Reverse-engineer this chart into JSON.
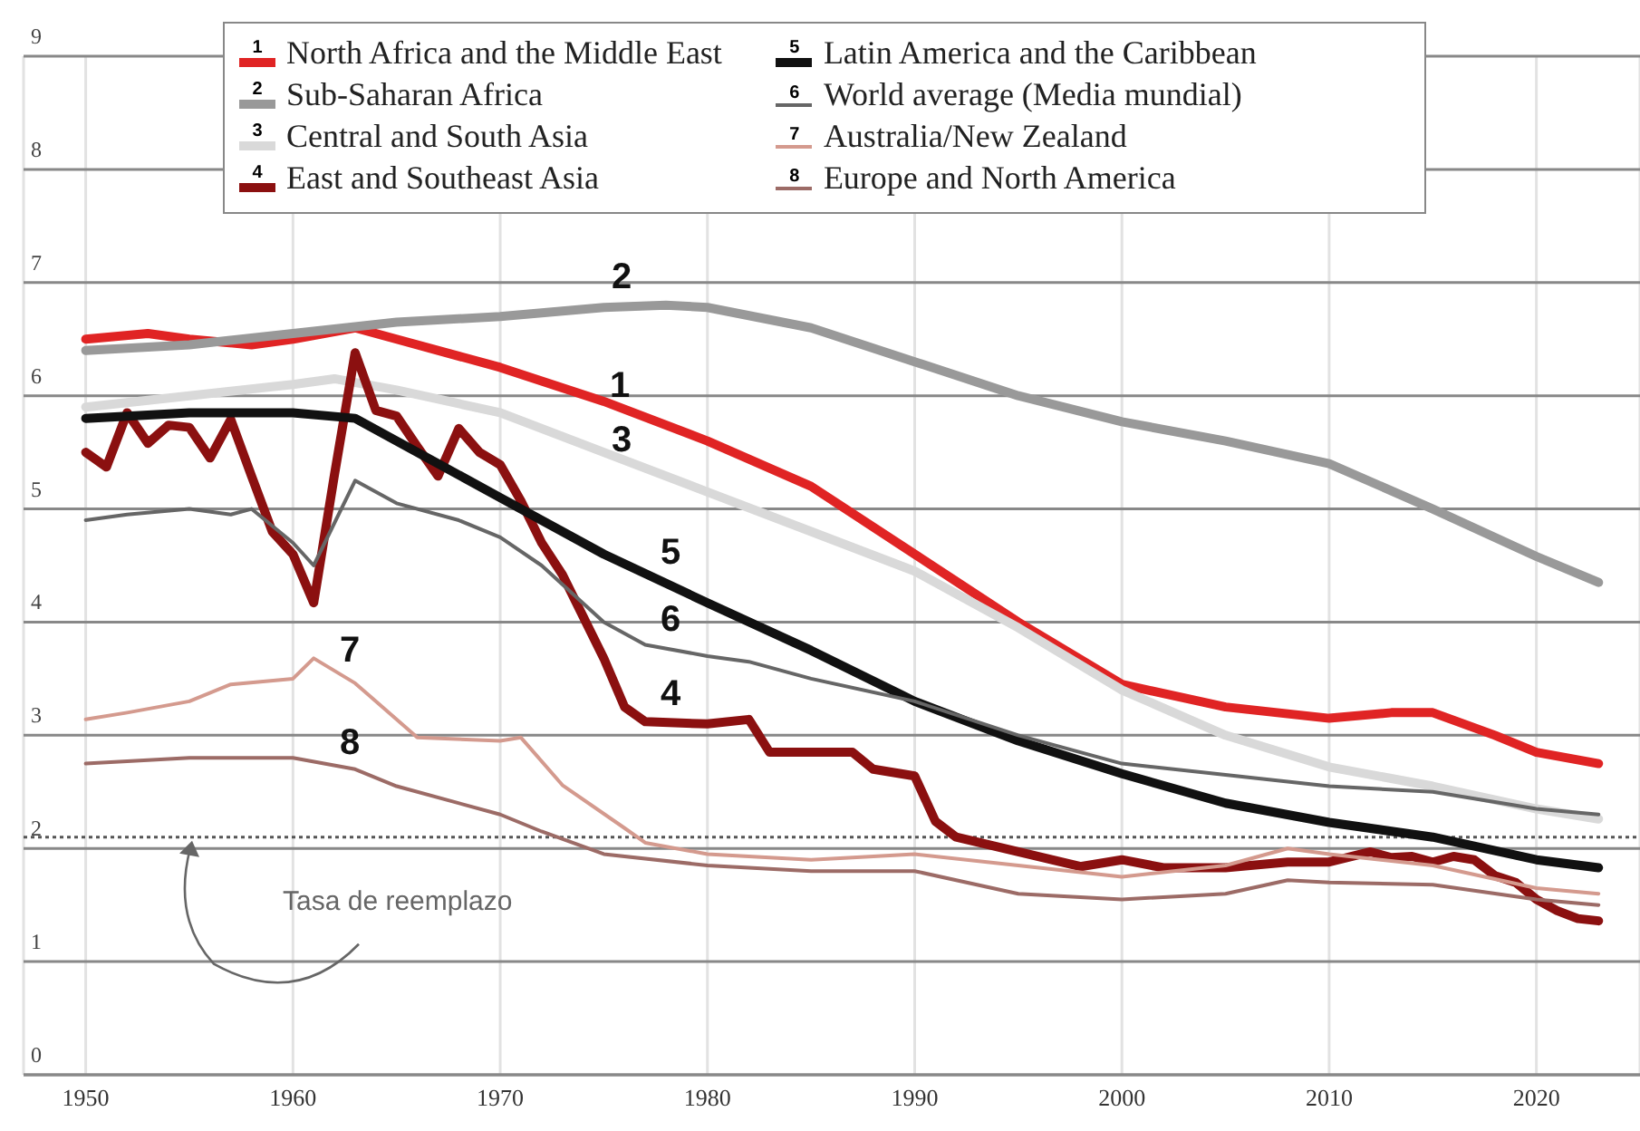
{
  "chart_data": {
    "type": "line",
    "xlim": [
      1947,
      2025
    ],
    "xticks": [
      1950,
      1960,
      1970,
      1980,
      1990,
      2000,
      2010,
      2020
    ],
    "ylim": [
      0,
      9
    ],
    "yticks": [
      0,
      1,
      2,
      3,
      4,
      5,
      6,
      7,
      8,
      9
    ],
    "grid": true,
    "legend": "top",
    "series": [
      {
        "name": "North Africa and the Middle East",
        "color": "#e02424",
        "x": [
          1950,
          1953,
          1955,
          1958,
          1960,
          1963,
          1965,
          1970,
          1975,
          1980,
          1985,
          1990,
          1995,
          2000,
          2005,
          2010,
          2013,
          2015,
          2018,
          2020,
          2023
        ],
        "values": [
          6.5,
          6.55,
          6.5,
          6.45,
          6.5,
          6.6,
          6.5,
          6.25,
          5.95,
          5.6,
          5.2,
          4.6,
          4.0,
          3.45,
          3.25,
          3.15,
          3.2,
          3.2,
          3.0,
          2.85,
          2.75
        ]
      },
      {
        "name": "Sub-Saharan Africa",
        "color": "#999999",
        "x": [
          1950,
          1955,
          1960,
          1965,
          1970,
          1975,
          1978,
          1980,
          1985,
          1990,
          1995,
          2000,
          2005,
          2010,
          2015,
          2020,
          2023
        ],
        "values": [
          6.4,
          6.45,
          6.55,
          6.65,
          6.7,
          6.78,
          6.8,
          6.78,
          6.6,
          6.3,
          6.0,
          5.77,
          5.6,
          5.4,
          5.0,
          4.58,
          4.35
        ]
      },
      {
        "name": "Central and South Asia",
        "color": "#d9d9d9",
        "x": [
          1950,
          1955,
          1960,
          1962,
          1965,
          1970,
          1975,
          1980,
          1985,
          1990,
          1995,
          2000,
          2005,
          2010,
          2015,
          2020,
          2023
        ],
        "values": [
          5.9,
          6.0,
          6.1,
          6.15,
          6.05,
          5.85,
          5.5,
          5.15,
          4.8,
          4.45,
          3.95,
          3.4,
          3.0,
          2.72,
          2.55,
          2.35,
          2.26
        ]
      },
      {
        "name": "East and Southeast Asia",
        "color": "#8b1010",
        "x": [
          1950,
          1951,
          1952,
          1953,
          1954,
          1955,
          1956,
          1957,
          1958,
          1959,
          1960,
          1961,
          1962,
          1963,
          1964,
          1965,
          1966,
          1967,
          1968,
          1969,
          1970,
          1971,
          1972,
          1973,
          1975,
          1976,
          1977,
          1980,
          1982,
          1983,
          1985,
          1987,
          1988,
          1990,
          1991,
          1992,
          1995,
          1998,
          2000,
          2002,
          2005,
          2008,
          2010,
          2012,
          2013,
          2014,
          2015,
          2016,
          2017,
          2018,
          2019,
          2020,
          2021,
          2022,
          2023
        ],
        "values": [
          5.5,
          5.37,
          5.85,
          5.58,
          5.74,
          5.72,
          5.45,
          5.79,
          5.29,
          4.8,
          4.6,
          4.17,
          5.3,
          6.38,
          5.87,
          5.82,
          5.55,
          5.29,
          5.71,
          5.5,
          5.39,
          5.07,
          4.7,
          4.42,
          3.68,
          3.25,
          3.12,
          3.1,
          3.14,
          2.85,
          2.85,
          2.85,
          2.7,
          2.64,
          2.24,
          2.1,
          1.97,
          1.84,
          1.9,
          1.83,
          1.83,
          1.88,
          1.88,
          1.97,
          1.92,
          1.93,
          1.88,
          1.93,
          1.9,
          1.76,
          1.7,
          1.55,
          1.45,
          1.38,
          1.36
        ]
      },
      {
        "name": "Latin America and the Caribbean",
        "color": "#111111",
        "x": [
          1950,
          1955,
          1960,
          1963,
          1965,
          1970,
          1975,
          1980,
          1985,
          1990,
          1995,
          2000,
          2005,
          2010,
          2015,
          2020,
          2023
        ],
        "values": [
          5.8,
          5.85,
          5.85,
          5.8,
          5.6,
          5.1,
          4.6,
          4.17,
          3.75,
          3.3,
          2.95,
          2.66,
          2.4,
          2.23,
          2.1,
          1.9,
          1.83
        ]
      },
      {
        "name": "World average (Media mundial)",
        "color": "#666666",
        "x": [
          1950,
          1952,
          1955,
          1957,
          1958,
          1960,
          1961,
          1963,
          1965,
          1968,
          1970,
          1972,
          1975,
          1977,
          1980,
          1982,
          1985,
          1990,
          1995,
          2000,
          2005,
          2010,
          2015,
          2020,
          2023
        ],
        "values": [
          4.9,
          4.95,
          5.0,
          4.95,
          5.0,
          4.7,
          4.5,
          5.25,
          5.05,
          4.9,
          4.75,
          4.5,
          4.0,
          3.8,
          3.7,
          3.65,
          3.5,
          3.3,
          3.0,
          2.75,
          2.65,
          2.55,
          2.5,
          2.35,
          2.3
        ]
      },
      {
        "name": "Australia/New Zealand",
        "color": "#d49a8e",
        "x": [
          1950,
          1952,
          1955,
          1957,
          1960,
          1961,
          1963,
          1966,
          1970,
          1971,
          1973,
          1976,
          1977,
          1980,
          1985,
          1990,
          1995,
          2000,
          2005,
          2008,
          2010,
          2015,
          2020,
          2023
        ],
        "values": [
          3.14,
          3.2,
          3.3,
          3.45,
          3.5,
          3.68,
          3.46,
          2.98,
          2.95,
          2.98,
          2.56,
          2.18,
          2.05,
          1.95,
          1.9,
          1.95,
          1.85,
          1.75,
          1.85,
          2.0,
          1.95,
          1.85,
          1.65,
          1.6
        ]
      },
      {
        "name": "Europe and North America",
        "color": "#9c6b66",
        "x": [
          1950,
          1955,
          1960,
          1963,
          1965,
          1970,
          1972,
          1975,
          1980,
          1985,
          1990,
          1995,
          2000,
          2005,
          2008,
          2010,
          2015,
          2020,
          2023
        ],
        "values": [
          2.75,
          2.8,
          2.8,
          2.7,
          2.55,
          2.3,
          2.15,
          1.95,
          1.85,
          1.8,
          1.8,
          1.6,
          1.55,
          1.6,
          1.72,
          1.7,
          1.68,
          1.55,
          1.5
        ]
      }
    ],
    "ref_lines": [
      {
        "axis": "y",
        "value": 2.1,
        "label": "Tasa de reemplazo",
        "color": "#555555",
        "line_style": "dotted"
      }
    ],
    "annotations": [
      "1",
      "2",
      "3",
      "4",
      "5",
      "6",
      "7",
      "8"
    ]
  }
}
